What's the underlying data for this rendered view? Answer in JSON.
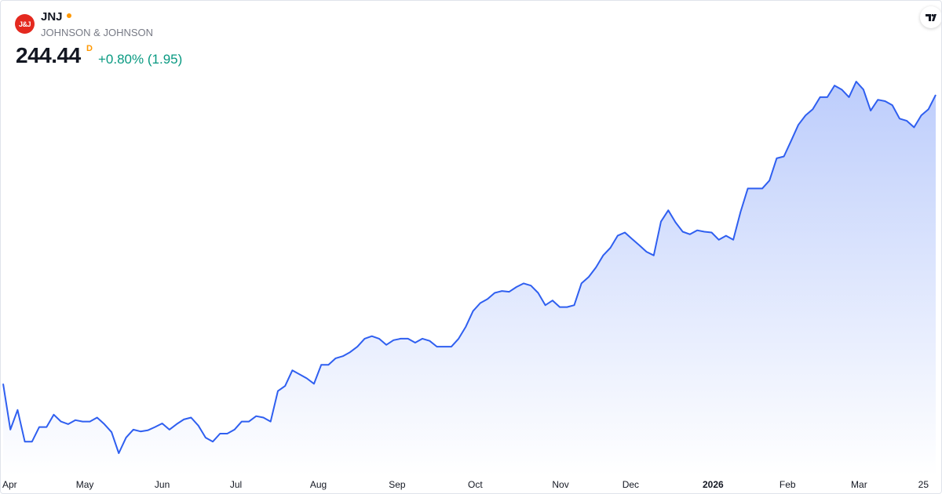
{
  "header": {
    "logo": "J&J",
    "symbol": "JNJ",
    "name": "JOHNSON & JOHNSON",
    "price": "244.44",
    "interval": "D",
    "change": "+0.80% (1.95)"
  },
  "chart_data": {
    "type": "area",
    "color": "#2f5ff0",
    "values": [
      165.0,
      152.4,
      157.8,
      149.1,
      149.1,
      153.1,
      153.1,
      156.5,
      154.6,
      153.9,
      155.0,
      154.6,
      154.6,
      155.7,
      153.9,
      151.7,
      145.9,
      150.2,
      152.4,
      151.9,
      152.2,
      153.1,
      154.1,
      152.4,
      153.9,
      155.2,
      155.7,
      153.5,
      150.2,
      149.1,
      151.3,
      151.3,
      152.4,
      154.6,
      154.6,
      156.1,
      155.7,
      154.6,
      163.0,
      164.4,
      168.7,
      167.6,
      166.5,
      165.0,
      170.2,
      170.2,
      172.0,
      172.6,
      173.7,
      175.2,
      177.4,
      178.1,
      177.4,
      175.7,
      177.0,
      177.4,
      177.4,
      176.3,
      177.4,
      176.8,
      175.2,
      175.2,
      175.2,
      177.4,
      180.7,
      185.0,
      187.2,
      188.3,
      190.0,
      190.5,
      190.3,
      191.6,
      192.6,
      192.0,
      190.0,
      186.6,
      187.9,
      186.1,
      186.1,
      186.6,
      192.6,
      194.4,
      197.0,
      200.3,
      202.4,
      205.7,
      206.6,
      204.8,
      203.1,
      201.3,
      200.3,
      209.6,
      212.7,
      209.4,
      206.8,
      206.1,
      207.2,
      206.8,
      206.6,
      204.6,
      205.7,
      204.6,
      212.2,
      218.7,
      218.7,
      218.7,
      220.9,
      227.0,
      227.5,
      231.8,
      236.2,
      238.8,
      240.5,
      243.8,
      243.8,
      247.0,
      245.9,
      243.8,
      248.1,
      245.9,
      240.1,
      243.1,
      242.7,
      241.6,
      237.9,
      237.3,
      235.5,
      238.8,
      240.5,
      244.44
    ],
    "xticks": [
      {
        "value": 0.9,
        "label": "Apr"
      },
      {
        "value": 11.3,
        "label": "May"
      },
      {
        "value": 22.0,
        "label": "Jun"
      },
      {
        "value": 32.2,
        "label": "Jul"
      },
      {
        "value": 43.6,
        "label": "Aug"
      },
      {
        "value": 54.5,
        "label": "Sep"
      },
      {
        "value": 65.3,
        "label": "Oct"
      },
      {
        "value": 77.1,
        "label": "Nov"
      },
      {
        "value": 86.8,
        "label": "Dec"
      },
      {
        "value": 98.2,
        "label": "2026"
      },
      {
        "value": 108.5,
        "label": "Feb"
      },
      {
        "value": 118.4,
        "label": "Mar"
      },
      {
        "value": 127.3,
        "label": "25"
      }
    ]
  }
}
